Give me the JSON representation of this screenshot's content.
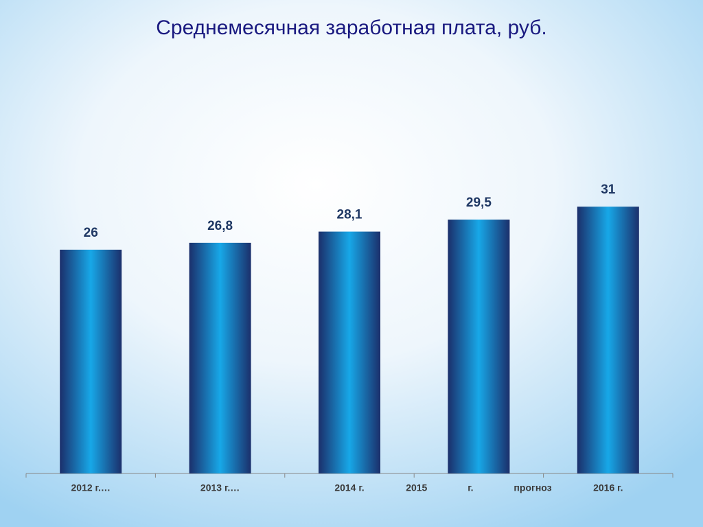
{
  "chart_data": {
    "type": "bar",
    "title": "Среднемесячная заработная плата, руб.",
    "categories": [
      "2012 г.…",
      "2013 г.…",
      "2014 г.",
      "2015 г. прогноз",
      "2016 г."
    ],
    "values": [
      26,
      26.8,
      28.1,
      29.5,
      31
    ],
    "value_labels": [
      "26",
      "26,8",
      "28,1",
      "29,5",
      "31"
    ],
    "color": "#1a9fe0",
    "ylim": [
      0,
      35
    ]
  }
}
